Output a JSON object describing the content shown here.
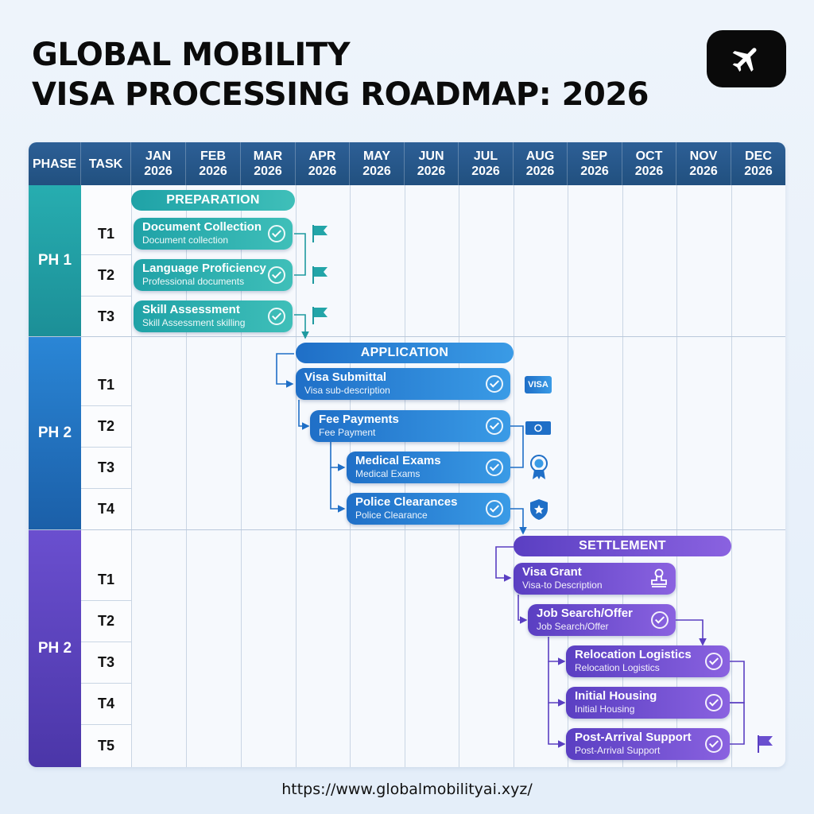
{
  "title": {
    "line1": "GLOBAL MOBILITY",
    "line2": "VISA PROCESSING ROADMAP: 2026"
  },
  "app_icon": "airplane-icon",
  "header": {
    "phase": "PHASE",
    "task": "TASK",
    "months": [
      {
        "m": "JAN",
        "y": "2026"
      },
      {
        "m": "FEB",
        "y": "2026"
      },
      {
        "m": "MAR",
        "y": "2026"
      },
      {
        "m": "APR",
        "y": "2026"
      },
      {
        "m": "MAY",
        "y": "2026"
      },
      {
        "m": "JUN",
        "y": "2026"
      },
      {
        "m": "JUL",
        "y": "2026"
      },
      {
        "m": "AUG",
        "y": "2026"
      },
      {
        "m": "SEP",
        "y": "2026"
      },
      {
        "m": "OCT",
        "y": "2026"
      },
      {
        "m": "NOV",
        "y": "2026"
      },
      {
        "m": "DEC",
        "y": "2026"
      }
    ]
  },
  "phases": [
    {
      "label": "PH 1",
      "band_label": "PREPARATION",
      "tasks": [
        {
          "id": "T1",
          "title": "Document Collection",
          "sub": "Document collection",
          "end_marker": "flag-icon"
        },
        {
          "id": "T2",
          "title": "Language Proficiency",
          "sub": "Professional documents",
          "end_marker": "flag-icon"
        },
        {
          "id": "T3",
          "title": "Skill Assessment",
          "sub": "Skill Assessment skilling",
          "end_marker": "flag-icon"
        }
      ]
    },
    {
      "label": "PH 2",
      "band_label": "APPLICATION",
      "tasks": [
        {
          "id": "T1",
          "title": "Visa Submittal",
          "sub": "Visa sub-description",
          "end_marker": "visa-card-icon",
          "badge": "VISA"
        },
        {
          "id": "T2",
          "title": "Fee Payments",
          "sub": "Fee Payment",
          "end_marker": "money-icon"
        },
        {
          "id": "T3",
          "title": "Medical Exams",
          "sub": "Medical Exams",
          "end_marker": "award-ribbon-icon"
        },
        {
          "id": "T4",
          "title": "Police Clearances",
          "sub": "Police Clearance",
          "end_marker": "shield-star-icon"
        }
      ]
    },
    {
      "label": "PH 2",
      "band_label": "SETTLEMENT",
      "tasks": [
        {
          "id": "T1",
          "title": "Visa Grant",
          "sub": "Visa-to Description",
          "end_marker": "stamp-icon"
        },
        {
          "id": "T2",
          "title": "Job Search/Offer",
          "sub": "Job Search/Offer"
        },
        {
          "id": "T3",
          "title": "Relocation Logistics",
          "sub": "Relocation Logistics"
        },
        {
          "id": "T4",
          "title": "Initial Housing",
          "sub": "Initial Housing"
        },
        {
          "id": "T5",
          "title": "Post-Arrival Support",
          "sub": "Post-Arrival Support",
          "end_marker": "flag-icon"
        }
      ]
    }
  ],
  "colors": {
    "teal": "#23a5a8",
    "blue": "#1f6fc7",
    "purple": "#5a3fc2",
    "header": "#21507f"
  },
  "footer_url": "https://www.globalmobilityai.xyz/"
}
